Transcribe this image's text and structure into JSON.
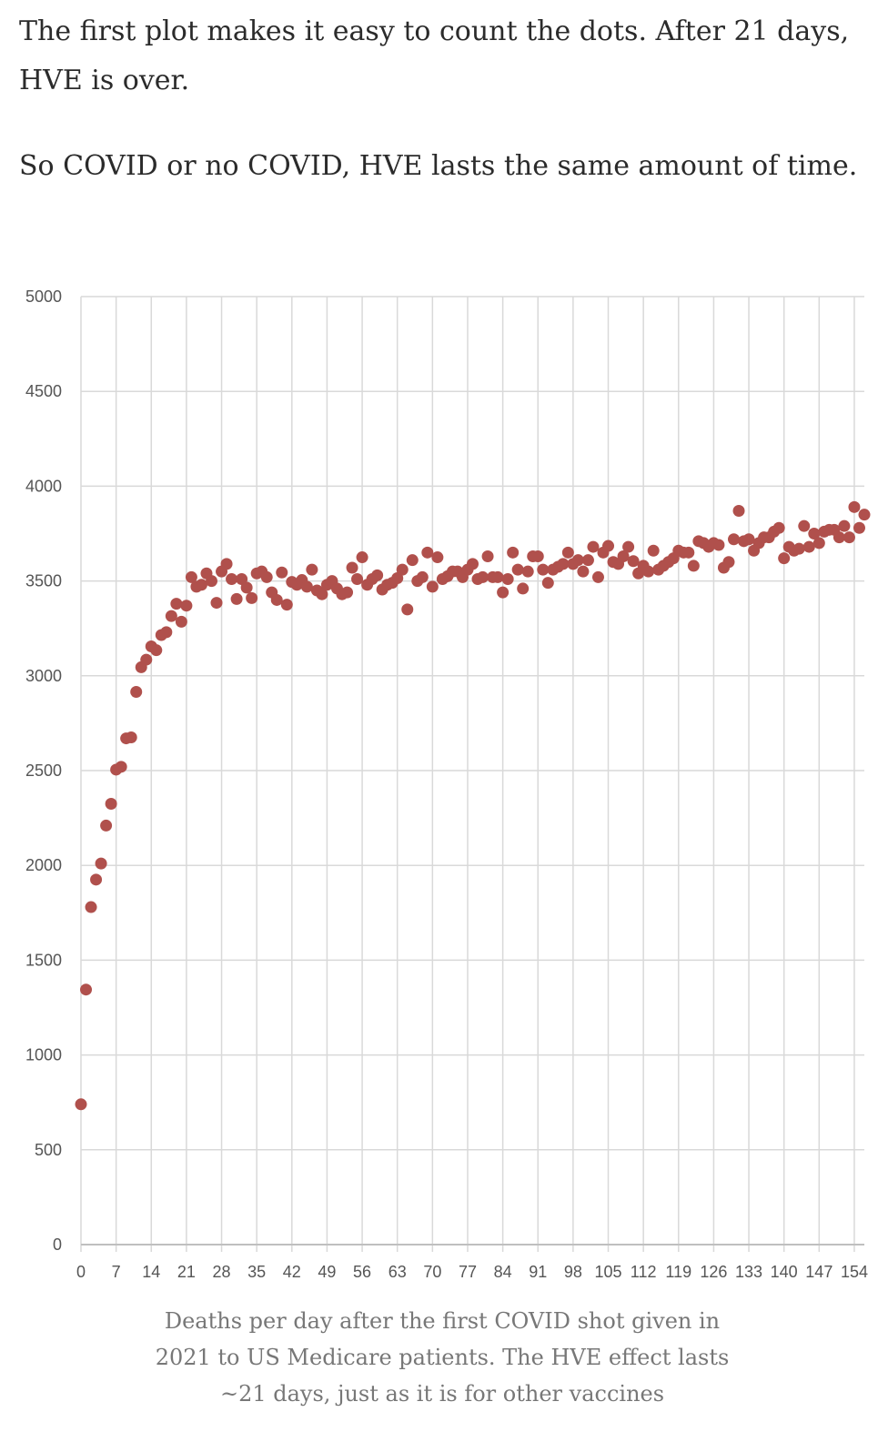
{
  "article": {
    "paragraphs": [
      "The first plot makes it easy to count the dots. After 21 days, HVE is over.",
      "So COVID or no COVID, HVE lasts the same amount of time."
    ]
  },
  "caption": "Deaths per day after the first COVID shot given in 2021 to US Medicare patients. The HVE effect lasts ~21 days, just as it is for other vaccines",
  "chart_data": {
    "type": "scatter",
    "title": "",
    "xlabel": "",
    "ylabel": "",
    "xlim": [
      0,
      156
    ],
    "ylim": [
      0,
      5000
    ],
    "x_ticks": [
      0,
      7,
      14,
      21,
      28,
      35,
      42,
      49,
      56,
      63,
      70,
      77,
      84,
      91,
      98,
      105,
      112,
      119,
      126,
      133,
      140,
      147,
      154
    ],
    "y_ticks": [
      0,
      500,
      1000,
      1500,
      2000,
      2500,
      3000,
      3500,
      4000,
      4500,
      5000
    ],
    "grid": true,
    "legend": "none",
    "marker_color": "#b0504c",
    "series": [
      {
        "x": [
          0,
          1,
          2,
          3,
          4,
          5,
          6,
          7,
          8,
          9,
          10,
          11,
          12,
          13,
          14,
          15,
          16,
          17,
          18,
          19,
          20,
          21,
          22,
          23,
          24,
          25,
          26,
          27,
          28,
          29,
          30,
          31,
          32,
          33,
          34,
          35,
          36,
          37,
          38,
          39,
          40,
          41,
          42,
          43,
          44,
          45,
          46,
          47,
          48,
          49,
          50,
          51,
          52,
          53,
          54,
          55,
          56,
          57,
          58,
          59,
          60,
          61,
          62,
          63,
          64,
          65,
          66,
          67,
          68,
          69,
          70,
          71,
          72,
          73,
          74,
          75,
          76,
          77,
          78,
          79,
          80,
          81,
          82,
          83,
          84,
          85,
          86,
          87,
          88,
          89,
          90,
          91,
          92,
          93,
          94,
          95,
          96,
          97,
          98,
          99,
          100,
          101,
          102,
          103,
          104,
          105,
          106,
          107,
          108,
          109,
          110,
          111,
          112,
          113,
          114,
          115,
          116,
          117,
          118,
          119,
          120,
          121,
          122,
          123,
          124,
          125,
          126,
          127,
          128,
          129,
          130,
          131,
          132,
          133,
          134,
          135,
          136,
          137,
          138,
          139,
          140,
          141,
          142,
          143,
          144,
          145,
          146,
          147,
          148,
          149,
          150,
          151,
          152,
          153,
          154,
          155,
          156
        ],
        "y": [
          740,
          1345,
          1780,
          1925,
          2010,
          2210,
          2325,
          2505,
          2520,
          2670,
          2675,
          2915,
          3045,
          3085,
          3155,
          3135,
          3215,
          3230,
          3315,
          3380,
          3285,
          3370,
          3520,
          3470,
          3480,
          3540,
          3500,
          3385,
          3550,
          3590,
          3510,
          3405,
          3510,
          3465,
          3410,
          3540,
          3550,
          3520,
          3440,
          3400,
          3545,
          3375,
          3495,
          3480,
          3505,
          3470,
          3560,
          3450,
          3430,
          3480,
          3500,
          3460,
          3430,
          3440,
          3570,
          3510,
          3625,
          3480,
          3510,
          3530,
          3455,
          3480,
          3490,
          3515,
          3560,
          3350,
          3610,
          3500,
          3520,
          3650,
          3470,
          3625,
          3510,
          3525,
          3550,
          3550,
          3520,
          3560,
          3590,
          3510,
          3520,
          3630,
          3520,
          3520,
          3440,
          3510,
          3650,
          3560,
          3460,
          3550,
          3630,
          3630,
          3560,
          3490,
          3560,
          3575,
          3590,
          3650,
          3590,
          3610,
          3550,
          3610,
          3680,
          3520,
          3650,
          3685,
          3600,
          3590,
          3630,
          3680,
          3605,
          3540,
          3580,
          3550,
          3660,
          3560,
          3580,
          3600,
          3620,
          3660,
          3650,
          3650,
          3580,
          3710,
          3700,
          3680,
          3700,
          3690,
          3570,
          3600,
          3720,
          3870,
          3710,
          3720,
          3660,
          3700,
          3730,
          3730,
          3760,
          3780,
          3620,
          3680,
          3660,
          3670,
          3790,
          3680,
          3750,
          3700,
          3760,
          3770,
          3770,
          3730,
          3790,
          3730,
          3890,
          3780,
          3850
        ]
      }
    ]
  }
}
